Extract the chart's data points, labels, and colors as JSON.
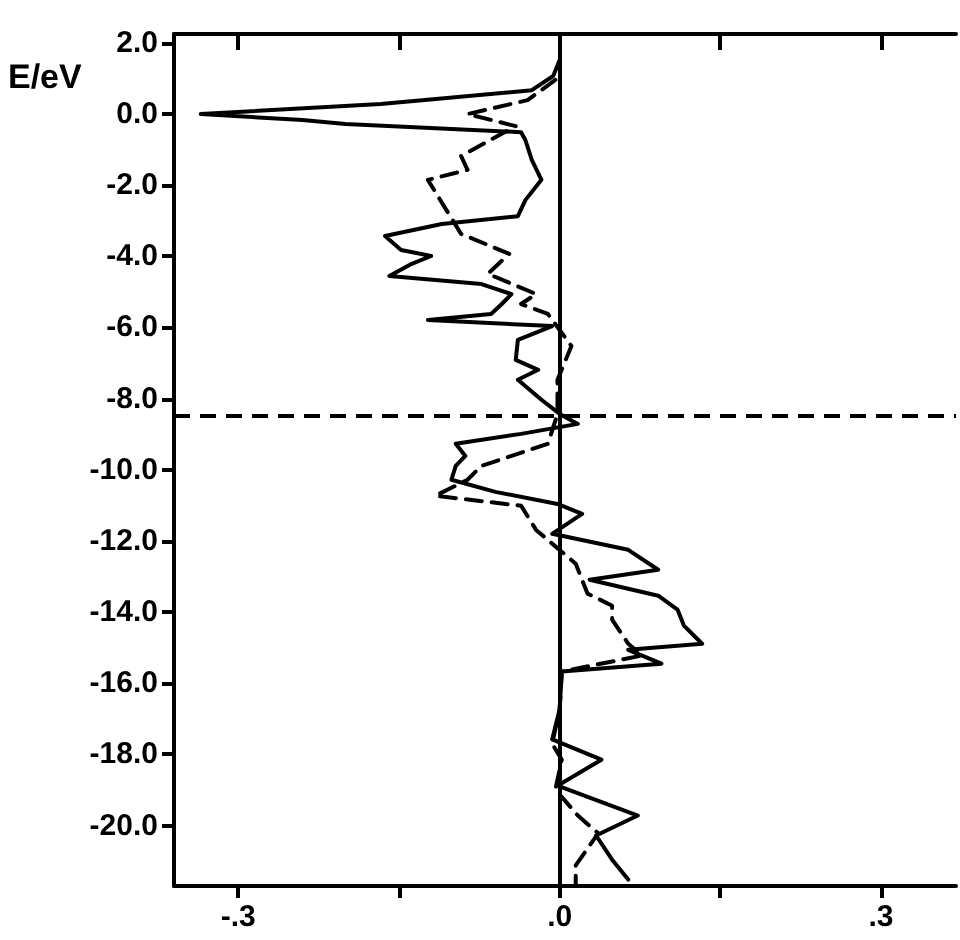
{
  "chart_data": {
    "type": "line",
    "ylabel": "E/eV",
    "xlim": [
      -0.36,
      0.37
    ],
    "xticks": [
      {
        "value": -0.3,
        "label": "-.3"
      },
      {
        "value": -0.15,
        "label": null
      },
      {
        "value": 0,
        "label": ".0"
      },
      {
        "value": 0.15,
        "label": null
      },
      {
        "value": 0.3,
        "label": ".3"
      }
    ],
    "ylim": [
      -21.7,
      2.25
    ],
    "yticks": [
      {
        "value": 2,
        "label": "2.0"
      },
      {
        "value": 0,
        "label": "0.0"
      },
      {
        "value": -2,
        "label": "-2.0"
      },
      {
        "value": -4,
        "label": "-4.0"
      },
      {
        "value": -6,
        "label": "-6.0"
      },
      {
        "value": -8,
        "label": "-8.0"
      },
      {
        "value": -10,
        "label": "-10.0"
      },
      {
        "value": -12,
        "label": "-12.0"
      },
      {
        "value": -14,
        "label": "-14.0"
      },
      {
        "value": -16,
        "label": "-16.0"
      },
      {
        "value": -18,
        "label": "-18.0"
      },
      {
        "value": -20,
        "label": "-20.0"
      }
    ],
    "grid": false,
    "marker": "none",
    "ref_lines": [
      {
        "axis": "y",
        "value": -8.48,
        "line_style": "dashed",
        "color": "#000000"
      },
      {
        "axis": "x",
        "value": 0,
        "line_style": "solid",
        "color": "#000000"
      }
    ],
    "series": [
      {
        "color": "#000000",
        "line_style": "solid",
        "x": [
          0,
          -0.006,
          -0.026,
          -0.167,
          -0.335,
          -0.24,
          -0.2,
          -0.036,
          -0.032,
          -0.026,
          -0.017,
          -0.032,
          -0.039,
          -0.11,
          -0.163,
          -0.148,
          -0.12,
          -0.138,
          -0.159,
          -0.073,
          -0.045,
          -0.054,
          -0.064,
          -0.123,
          -0.007,
          -0.039,
          -0.041,
          -0.02,
          -0.039,
          -0.017,
          0,
          0.017,
          -0.036,
          -0.097,
          -0.088,
          -0.097,
          -0.101,
          -0.06,
          -0.002,
          0.021,
          -0.007,
          0.064,
          0.092,
          0.028,
          0.092,
          0.11,
          0.116,
          0.133,
          0.064,
          0.095,
          0.002,
          0,
          -0.007,
          0.039,
          -0.002,
          0.073,
          0.034,
          0.049,
          0.064
        ],
        "values": [
          1.52,
          1.07,
          0.67,
          0.28,
          0,
          -0.17,
          -0.28,
          -0.51,
          -0.73,
          -1.29,
          -1.85,
          -2.42,
          -2.87,
          -3.09,
          -3.43,
          -3.82,
          -3.99,
          -4.21,
          -4.55,
          -4.78,
          -5.06,
          -5.34,
          -5.62,
          -5.79,
          -5.96,
          -6.35,
          -6.91,
          -7.19,
          -7.47,
          -8.03,
          -8.43,
          -8.71,
          -8.99,
          -9.27,
          -9.61,
          -9.89,
          -10.28,
          -10.62,
          -10.96,
          -11.24,
          -11.8,
          -12.25,
          -12.81,
          -13.09,
          -13.54,
          -13.93,
          -14.38,
          -14.89,
          -15.06,
          -15.45,
          -15.67,
          -16.74,
          -17.58,
          -18.15,
          -18.88,
          -19.72,
          -20.28,
          -20.96,
          -21.52
        ]
      },
      {
        "color": "#000000",
        "line_style": "dashed",
        "x": [
          -0.004,
          -0.03,
          -0.086,
          -0.041,
          -0.092,
          -0.086,
          -0.123,
          -0.092,
          -0.047,
          -0.067,
          -0.022,
          -0.036,
          -0.011,
          0.011,
          -0.002,
          -0.002,
          -0.011,
          -0.073,
          -0.086,
          -0.116,
          -0.036,
          -0.022,
          0.015,
          0.026,
          0.049,
          0.049,
          0.064,
          0.077,
          0.002,
          0,
          -0.007,
          0.002,
          -0.004,
          0.017,
          0.036,
          0.015,
          0.015
        ],
        "values": [
          0.96,
          0.39,
          0,
          -0.34,
          -1.18,
          -1.57,
          -1.85,
          -3.37,
          -3.93,
          -4.49,
          -5.06,
          -5.34,
          -5.62,
          -6.52,
          -7.47,
          -8.43,
          -9.27,
          -9.89,
          -10.28,
          -10.73,
          -11.01,
          -11.69,
          -12.64,
          -13.48,
          -13.82,
          -14.21,
          -14.89,
          -15.22,
          -15.67,
          -16.74,
          -17.7,
          -18.15,
          -18.99,
          -19.72,
          -20.22,
          -21.12,
          -21.69
        ]
      }
    ]
  }
}
